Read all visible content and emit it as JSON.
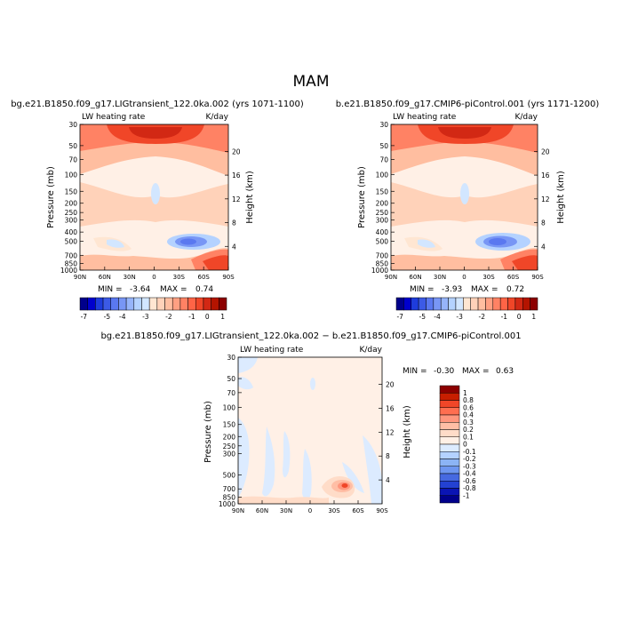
{
  "figure": {
    "season": "MAM"
  },
  "chart_data": [
    {
      "type": "heatmap",
      "title": "bg.e21.B1850.f09_g17.LIGtransient_122.0ka.002 (yrs 1071-1100)",
      "variable": "LW heating rate",
      "units": "K/day",
      "xlabel": "",
      "ylabel": "Pressure (mb)",
      "ylabel_right": "Height (km)",
      "x_ticks": [
        "90N",
        "60N",
        "30N",
        "0",
        "30S",
        "60S",
        "90S"
      ],
      "y_ticks": [
        "30",
        "50",
        "70",
        "100",
        "150",
        "200",
        "250",
        "300",
        "400",
        "500",
        "700",
        "850",
        "1000"
      ],
      "y_ticks_right": [
        "20",
        "16",
        "12",
        "8",
        "4"
      ],
      "ylim": [
        1000,
        30
      ],
      "stats": {
        "min_label": "MIN =",
        "min": "-3.64",
        "max_label": "MAX =",
        "max": "0.74"
      },
      "colorbar": {
        "orientation": "horizontal",
        "labels": [
          "-7",
          "-5",
          "-4",
          "-3",
          "-2",
          "-1",
          "0",
          "1"
        ],
        "colors": [
          "#00008b",
          "#0000cd",
          "#1e3cdc",
          "#3c5ae6",
          "#5a78f0",
          "#7896f5",
          "#96b4fa",
          "#b4d2ff",
          "#d2e6ff",
          "#ffe6d2",
          "#ffd2b9",
          "#ffbea0",
          "#ffa082",
          "#ff8264",
          "#ff6446",
          "#f04628",
          "#d22814",
          "#b41400",
          "#8c0000"
        ]
      }
    },
    {
      "type": "heatmap",
      "title": "b.e21.B1850.f09_g17.CMIP6-piControl.001 (yrs 1171-1200)",
      "variable": "LW heating rate",
      "units": "K/day",
      "xlabel": "",
      "ylabel": "Pressure (mb)",
      "ylabel_right": "Height (km)",
      "x_ticks": [
        "90N",
        "60N",
        "30N",
        "0",
        "30S",
        "60S",
        "90S"
      ],
      "y_ticks": [
        "30",
        "50",
        "70",
        "100",
        "150",
        "200",
        "250",
        "300",
        "400",
        "500",
        "700",
        "850",
        "1000"
      ],
      "y_ticks_right": [
        "20",
        "16",
        "12",
        "8",
        "4"
      ],
      "ylim": [
        1000,
        30
      ],
      "stats": {
        "min_label": "MIN =",
        "min": "-3.93",
        "max_label": "MAX =",
        "max": "0.72"
      },
      "colorbar": {
        "orientation": "horizontal",
        "labels": [
          "-7",
          "-5",
          "-4",
          "-3",
          "-2",
          "-1",
          "0",
          "1"
        ],
        "colors": [
          "#00008b",
          "#0000cd",
          "#1e3cdc",
          "#3c5ae6",
          "#5a78f0",
          "#7896f5",
          "#96b4fa",
          "#b4d2ff",
          "#d2e6ff",
          "#ffe6d2",
          "#ffd2b9",
          "#ffbea0",
          "#ffa082",
          "#ff8264",
          "#ff6446",
          "#f04628",
          "#d22814",
          "#b41400",
          "#8c0000"
        ]
      }
    },
    {
      "type": "heatmap",
      "title": "bg.e21.B1850.f09_g17.LIGtransient_122.0ka.002 − b.e21.B1850.f09_g17.CMIP6-piControl.001",
      "variable": "LW heating rate",
      "units": "K/day",
      "xlabel": "",
      "ylabel": "Pressure (mb)",
      "ylabel_right": "Height (km)",
      "x_ticks": [
        "90N",
        "60N",
        "30N",
        "0",
        "30S",
        "60S",
        "90S"
      ],
      "y_ticks": [
        "30",
        "50",
        "70",
        "100",
        "150",
        "200",
        "250",
        "300",
        "500",
        "700",
        "850",
        "1000"
      ],
      "y_ticks_right": [
        "20",
        "16",
        "12",
        "8",
        "4"
      ],
      "ylim": [
        1000,
        30
      ],
      "stats": {
        "min_label": "MIN =",
        "min": "-0.30",
        "max_label": "MAX =",
        "max": "0.63"
      },
      "colorbar": {
        "orientation": "vertical",
        "labels": [
          "1",
          "0.8",
          "0.6",
          "0.4",
          "0.3",
          "0.2",
          "0.1",
          "0",
          "-0.1",
          "-0.2",
          "-0.3",
          "-0.4",
          "-0.6",
          "-0.8",
          "-1"
        ],
        "colors": [
          "#8c0000",
          "#c81e00",
          "#f04628",
          "#ff6e50",
          "#ff967d",
          "#ffbea5",
          "#ffdcc8",
          "#fff0e6",
          "#dcebff",
          "#b4d2ff",
          "#8cb4f5",
          "#6e96f0",
          "#4669e1",
          "#2341d2",
          "#0a14b4",
          "#00008b"
        ]
      }
    }
  ]
}
